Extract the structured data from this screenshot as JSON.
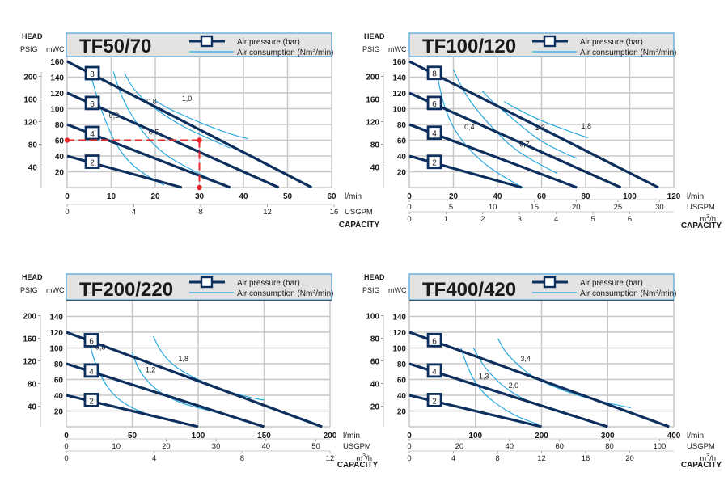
{
  "legend": {
    "air_pressure": "Air pressure (bar)",
    "air_consumption_prefix": "Air consumption (Nm",
    "air_consumption_sup": "3",
    "air_consumption_suffix": "/min)"
  },
  "axis_common": {
    "head": "HEAD",
    "psig": "PSIG",
    "mwc": "mWC",
    "capacity": "CAPACITY",
    "lmin": "l/min",
    "usgpm": "USGPM",
    "m3h_prefix": "m",
    "m3h_sup": "3",
    "m3h_suffix": "/h"
  },
  "colors": {
    "pressure_line": "#0d2f5e",
    "air_line": "#29a8e0",
    "title": "#0d3f78",
    "header_bg": "#e3e3e3",
    "header_border": "#4aa3d6",
    "grid": "#c8c8c8",
    "operating_point": "#e8292b"
  },
  "chart_data": [
    {
      "type": "line",
      "title": "TF50/70",
      "xlabel": "CAPACITY",
      "ylabel": "HEAD",
      "xlim": [
        0,
        60
      ],
      "ylim": [
        0,
        160
      ],
      "x_ticks_lmin": [
        "0",
        "10",
        "20",
        "30",
        "40",
        "50",
        "60"
      ],
      "x_ticks_usgpm": [
        "0",
        "4",
        "8",
        "12",
        "16"
      ],
      "x_ticks_m3h": [],
      "y_ticks_mwc": [
        "160",
        "140",
        "120",
        "100",
        "80",
        "60",
        "40",
        "20"
      ],
      "y_ticks_psig": [
        "200",
        "160",
        "120",
        "80",
        "40"
      ],
      "grid": true,
      "series": [
        {
          "name": "8",
          "kind": "pressure",
          "points": [
            [
              0,
              160
            ],
            [
              55.5,
              0
            ]
          ]
        },
        {
          "name": "6",
          "kind": "pressure",
          "points": [
            [
              0,
              120
            ],
            [
              48,
              0
            ]
          ]
        },
        {
          "name": "4",
          "kind": "pressure",
          "points": [
            [
              0,
              80
            ],
            [
              37,
              0
            ]
          ]
        },
        {
          "name": "2",
          "kind": "pressure",
          "points": [
            [
              0,
              40
            ],
            [
              26,
              0
            ]
          ]
        },
        {
          "name": "0,3",
          "kind": "air",
          "points": [
            [
              5.5,
              140
            ],
            [
              7,
              110
            ],
            [
              9,
              80
            ],
            [
              11,
              55
            ],
            [
              14,
              32
            ],
            [
              18,
              15
            ],
            [
              22,
              3
            ]
          ],
          "label_at": [
            9.5,
            88
          ]
        },
        {
          "name": "0,5",
          "kind": "air",
          "points": [
            [
              10.5,
              147
            ],
            [
              12,
              120
            ],
            [
              14.5,
              92
            ],
            [
              18,
              64
            ],
            [
              22,
              42
            ],
            [
              27,
              26
            ],
            [
              32,
              12
            ]
          ],
          "label_at": [
            18.5,
            67
          ]
        },
        {
          "name": "0,8",
          "kind": "air",
          "points": [
            [
              13,
              145
            ],
            [
              15,
              125
            ],
            [
              18,
              108
            ],
            [
              22,
              92
            ],
            [
              27,
              75
            ],
            [
              33,
              60
            ],
            [
              37,
              50
            ]
          ],
          "label_at": [
            18,
            106
          ]
        },
        {
          "name": "1,0",
          "kind": "air",
          "points": [
            [
              20,
              110
            ],
            [
              23,
              100
            ],
            [
              27,
              90
            ],
            [
              32,
              78
            ],
            [
              38,
              66
            ],
            [
              41,
              62
            ]
          ],
          "label_at": [
            26,
            110
          ]
        }
      ],
      "operating_point": {
        "x": 30,
        "y": 60
      }
    },
    {
      "type": "line",
      "title": "TF100/120",
      "xlabel": "CAPACITY",
      "ylabel": "HEAD",
      "xlim": [
        0,
        120
      ],
      "ylim": [
        0,
        160
      ],
      "x_ticks_lmin": [
        "0",
        "20",
        "40",
        "60",
        "80",
        "100",
        "120"
      ],
      "x_ticks_usgpm": [
        "0",
        "5",
        "10",
        "15",
        "20",
        "25",
        "30"
      ],
      "x_ticks_m3h": [
        "0",
        "1",
        "2",
        "3",
        "4",
        "5",
        "6"
      ],
      "y_ticks_mwc": [
        "160",
        "140",
        "120",
        "100",
        "80",
        "60",
        "40",
        "20"
      ],
      "y_ticks_psig": [
        "200",
        "160",
        "120",
        "80",
        "40"
      ],
      "grid": true,
      "series": [
        {
          "name": "8",
          "kind": "pressure",
          "points": [
            [
              0,
              160
            ],
            [
              113,
              0
            ]
          ]
        },
        {
          "name": "6",
          "kind": "pressure",
          "points": [
            [
              0,
              120
            ],
            [
              96,
              0
            ]
          ]
        },
        {
          "name": "4",
          "kind": "pressure",
          "points": [
            [
              0,
              80
            ],
            [
              76,
              0
            ]
          ]
        },
        {
          "name": "2",
          "kind": "pressure",
          "points": [
            [
              0,
              40
            ],
            [
              51,
              0
            ]
          ]
        },
        {
          "name": "0,4",
          "kind": "air",
          "points": [
            [
              12.5,
              145
            ],
            [
              15,
              110
            ],
            [
              19,
              80
            ],
            [
              25,
              55
            ],
            [
              32,
              35
            ],
            [
              40,
              18
            ],
            [
              51.5,
              0
            ]
          ],
          "label_at": [
            25,
            74
          ]
        },
        {
          "name": "0,7",
          "kind": "air",
          "points": [
            [
              20,
              150
            ],
            [
              24,
              125
            ],
            [
              30,
              100
            ],
            [
              38,
              75
            ],
            [
              46,
              52
            ],
            [
              56,
              34
            ],
            [
              67,
              18
            ]
          ],
          "label_at": [
            50,
            52
          ]
        },
        {
          "name": "1,3",
          "kind": "air",
          "points": [
            [
              33,
              123
            ],
            [
              38,
              108
            ],
            [
              45,
              92
            ],
            [
              52,
              75
            ],
            [
              60,
              58
            ],
            [
              70,
              44
            ],
            [
              76,
              37
            ]
          ],
          "label_at": [
            57,
            73
          ]
        },
        {
          "name": "1,8",
          "kind": "air",
          "points": [
            [
              43,
              109
            ],
            [
              50,
              98
            ],
            [
              58,
              87
            ],
            [
              66,
              78
            ],
            [
              74,
              70
            ],
            [
              81,
              63
            ]
          ],
          "label_at": [
            78,
            75
          ]
        }
      ]
    },
    {
      "type": "line",
      "title": "TF200/220",
      "xlabel": "CAPACITY",
      "ylabel": "HEAD",
      "xlim": [
        0,
        200
      ],
      "ylim": [
        0,
        160
      ],
      "x_ticks_lmin": [
        "0",
        "50",
        "100",
        "150",
        "200"
      ],
      "x_ticks_usgpm": [
        "0",
        "10",
        "20",
        "30",
        "40",
        "50"
      ],
      "x_ticks_m3h": [
        "0",
        "4",
        "8",
        "12"
      ],
      "y_ticks_mwc": [
        "140",
        "120",
        "100",
        "80",
        "60",
        "40",
        "20"
      ],
      "y_ticks_psig": [
        "200",
        "160",
        "120",
        "80",
        "40"
      ],
      "grid": true,
      "series": [
        {
          "name": "6",
          "kind": "pressure",
          "points": [
            [
              0,
              120
            ],
            [
              194,
              0
            ]
          ]
        },
        {
          "name": "4",
          "kind": "pressure",
          "points": [
            [
              0,
              80
            ],
            [
              150,
              0
            ]
          ]
        },
        {
          "name": "2",
          "kind": "pressure",
          "points": [
            [
              0,
              40
            ],
            [
              100,
              0
            ]
          ]
        },
        {
          "name": "0,8",
          "kind": "air",
          "points": [
            [
              18,
              103
            ],
            [
              22,
              80
            ],
            [
              28,
              58
            ],
            [
              36,
              40
            ],
            [
              46,
              27
            ],
            [
              58,
              18
            ],
            [
              68,
              12
            ]
          ],
          "label_at": [
            22,
            98
          ]
        },
        {
          "name": "1,2",
          "kind": "air",
          "points": [
            [
              50,
              95
            ],
            [
              54,
              75
            ],
            [
              62,
              56
            ],
            [
              74,
              40
            ],
            [
              90,
              28
            ],
            [
              110,
              20
            ],
            [
              135,
              9
            ]
          ],
          "label_at": [
            60,
            69
          ]
        },
        {
          "name": "1,8",
          "kind": "air",
          "points": [
            [
              66,
              115
            ],
            [
              70,
              100
            ],
            [
              78,
              82
            ],
            [
              90,
              68
            ],
            [
              106,
              55
            ],
            [
              125,
              43
            ],
            [
              145,
              35
            ],
            [
              150,
              34
            ]
          ],
          "label_at": [
            85,
            83
          ]
        }
      ]
    },
    {
      "type": "line",
      "title": "TF400/420",
      "xlabel": "CAPACITY",
      "ylabel": "HEAD",
      "xlim": [
        0,
        400
      ],
      "ylim": [
        0,
        160
      ],
      "x_ticks_lmin": [
        "0",
        "100",
        "200",
        "300",
        "400"
      ],
      "x_ticks_usgpm": [
        "0",
        "20",
        "40",
        "60",
        "80",
        "100"
      ],
      "x_ticks_m3h": [
        "0",
        "4",
        "8",
        "12",
        "16",
        "20"
      ],
      "y_ticks_mwc": [
        "140",
        "120",
        "100",
        "80",
        "60",
        "40",
        "20"
      ],
      "y_ticks_psig": [
        "100",
        "80",
        "60",
        "40",
        "20"
      ],
      "grid": true,
      "series": [
        {
          "name": "6",
          "kind": "pressure",
          "points": [
            [
              0,
              120
            ],
            [
              393,
              0
            ]
          ]
        },
        {
          "name": "4",
          "kind": "pressure",
          "points": [
            [
              0,
              80
            ],
            [
              300,
              0
            ]
          ]
        },
        {
          "name": "2",
          "kind": "pressure",
          "points": [
            [
              0,
              40
            ],
            [
              200,
              0
            ]
          ]
        },
        {
          "name": "1,3",
          "kind": "air",
          "points": [
            [
              78,
              100
            ],
            [
              86,
              80
            ],
            [
              98,
              58
            ],
            [
              115,
              40
            ],
            [
              138,
              25
            ],
            [
              165,
              12
            ],
            [
              195,
              3
            ]
          ],
          "label_at": [
            105,
            61
          ]
        },
        {
          "name": "2,0",
          "kind": "air",
          "points": [
            [
              97,
              100
            ],
            [
              110,
              80
            ],
            [
              128,
              62
            ],
            [
              150,
              46
            ],
            [
              180,
              32
            ],
            [
              220,
              20
            ],
            [
              260,
              10
            ],
            [
              295,
              2
            ]
          ],
          "label_at": [
            150,
            49
          ]
        },
        {
          "name": "3,4",
          "kind": "air",
          "points": [
            [
              134,
              112
            ],
            [
              145,
              95
            ],
            [
              162,
              80
            ],
            [
              185,
              64
            ],
            [
              215,
              52
            ],
            [
              250,
              41
            ],
            [
              290,
              32
            ],
            [
              335,
              24
            ]
          ],
          "label_at": [
            168,
            83
          ]
        }
      ]
    }
  ]
}
